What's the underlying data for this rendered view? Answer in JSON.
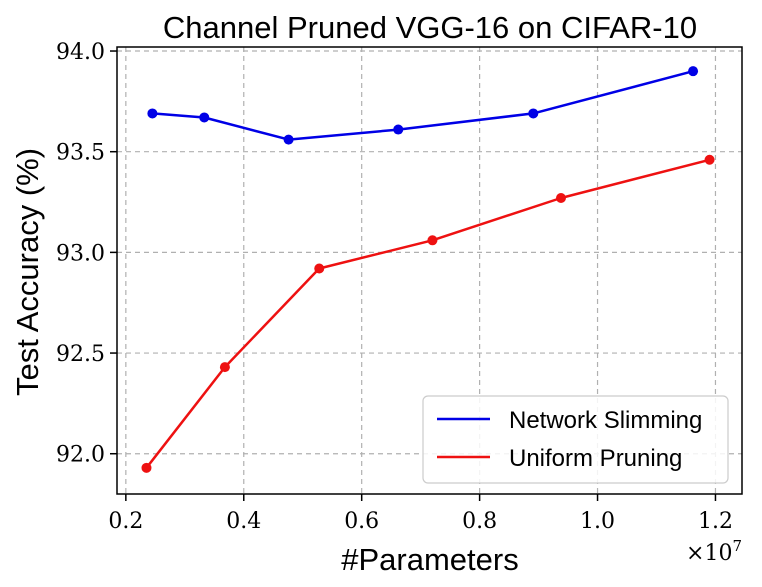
{
  "chart_data": {
    "type": "line",
    "title": "Channel Pruned VGG-16 on CIFAR-10",
    "xlabel": "#Parameters",
    "ylabel": "Test Accuracy (%)",
    "x_scale_label": "×10",
    "x_scale_exponent": "7",
    "xlim": [
      0.185,
      1.245
    ],
    "ylim": [
      91.8,
      94.02
    ],
    "xticks": [
      0.2,
      0.4,
      0.6,
      0.8,
      1.0,
      1.2
    ],
    "xtick_labels": [
      "0.2",
      "0.4",
      "0.6",
      "0.8",
      "1.0",
      "1.2"
    ],
    "yticks": [
      92.0,
      92.5,
      93.0,
      93.5,
      94.0
    ],
    "ytick_labels": [
      "92.0",
      "92.5",
      "93.0",
      "93.5",
      "94.0"
    ],
    "grid": true,
    "legend_position": "lower-right",
    "series": [
      {
        "name": "Network Slimming",
        "color": "#0000e6",
        "x": [
          0.245,
          0.333,
          0.476,
          0.662,
          0.891,
          1.162
        ],
        "y": [
          93.69,
          93.67,
          93.56,
          93.61,
          93.69,
          93.9
        ]
      },
      {
        "name": "Uniform Pruning",
        "color": "#ee1111",
        "x": [
          0.235,
          0.368,
          0.528,
          0.72,
          0.938,
          1.19
        ],
        "y": [
          91.93,
          92.43,
          92.92,
          93.06,
          93.27,
          93.46
        ]
      }
    ]
  }
}
